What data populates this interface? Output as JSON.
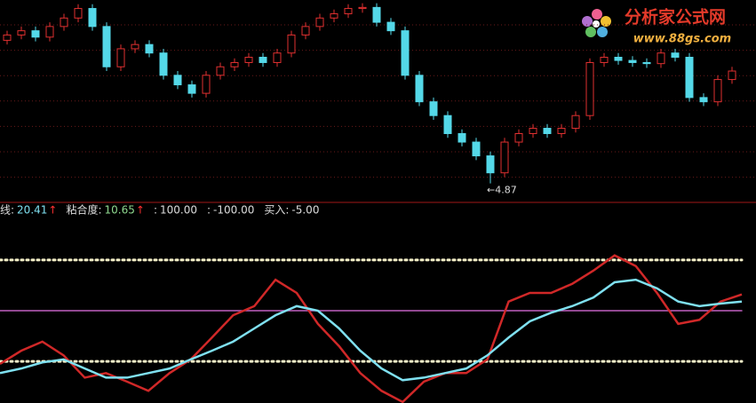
{
  "chart_data": [
    {
      "type": "candlestick",
      "annotation": "←4.87",
      "logo": {
        "title": "分析家公式网",
        "url": "www.88gs.com"
      },
      "up_color": "#e03030",
      "down_color": "#54d8e8",
      "ylim": [
        4.8,
        6.6
      ],
      "open": [
        6.22,
        6.27,
        6.31,
        6.25,
        6.35,
        6.43,
        6.52,
        6.35,
        5.97,
        6.14,
        6.18,
        6.1,
        5.89,
        5.8,
        5.72,
        5.89,
        5.97,
        6.01,
        6.06,
        6.01,
        6.1,
        6.27,
        6.35,
        6.43,
        6.47,
        6.52,
        6.53,
        6.39,
        6.31,
        5.89,
        5.64,
        5.51,
        5.34,
        5.26,
        5.13,
        4.97,
        5.26,
        5.34,
        5.39,
        5.34,
        5.39,
        5.51,
        6.01,
        6.06,
        6.03,
        6.01,
        6.0,
        6.1,
        6.06,
        5.68,
        5.64,
        5.85
      ],
      "high": [
        6.31,
        6.35,
        6.35,
        6.39,
        6.47,
        6.56,
        6.56,
        6.39,
        6.18,
        6.22,
        6.22,
        6.14,
        5.93,
        5.84,
        5.93,
        6.01,
        6.05,
        6.1,
        6.1,
        6.14,
        6.31,
        6.39,
        6.47,
        6.51,
        6.56,
        6.57,
        6.57,
        6.43,
        6.35,
        5.93,
        5.68,
        5.55,
        5.38,
        5.3,
        5.17,
        5.3,
        5.38,
        5.43,
        5.43,
        5.43,
        5.55,
        6.05,
        6.1,
        6.1,
        6.07,
        6.05,
        6.14,
        6.14,
        6.1,
        5.72,
        5.89,
        5.97
      ],
      "low": [
        6.18,
        6.23,
        6.21,
        6.21,
        6.31,
        6.39,
        6.31,
        5.93,
        5.93,
        6.1,
        6.06,
        5.85,
        5.76,
        5.68,
        5.68,
        5.85,
        5.93,
        5.97,
        5.97,
        5.97,
        6.06,
        6.23,
        6.31,
        6.39,
        6.43,
        6.48,
        6.35,
        6.27,
        5.85,
        5.6,
        5.47,
        5.3,
        5.22,
        5.09,
        4.87,
        4.93,
        5.22,
        5.3,
        5.3,
        5.3,
        5.35,
        5.47,
        5.97,
        5.99,
        5.97,
        5.96,
        5.96,
        6.02,
        5.64,
        5.6,
        5.6,
        5.81
      ],
      "close": [
        6.27,
        6.31,
        6.25,
        6.35,
        6.43,
        6.52,
        6.35,
        5.97,
        6.14,
        6.18,
        6.1,
        5.89,
        5.8,
        5.72,
        5.89,
        5.97,
        6.01,
        6.06,
        6.01,
        6.1,
        6.27,
        6.35,
        6.43,
        6.47,
        6.52,
        6.53,
        6.39,
        6.31,
        5.89,
        5.64,
        5.51,
        5.34,
        5.26,
        5.13,
        4.97,
        5.26,
        5.34,
        5.39,
        5.34,
        5.39,
        5.51,
        6.01,
        6.06,
        6.03,
        6.01,
        6.0,
        6.1,
        6.06,
        5.68,
        5.64,
        5.85,
        5.93
      ]
    },
    {
      "type": "line",
      "header": [
        {
          "label": "线:",
          "value": "20.41",
          "arrow": "↑"
        },
        {
          "label": "粘合度:",
          "value": "10.65",
          "arrow": "↑"
        },
        {
          "label": ":",
          "value": "100.00"
        },
        {
          "label": ":",
          "value": "-100.00"
        },
        {
          "label": "买入:",
          "value": "-5.00"
        }
      ],
      "ylim": [
        -182,
        210
      ],
      "reference_lines": [
        {
          "value": 100,
          "color": "#f4efc8"
        },
        {
          "value": 0,
          "color": "#c060c0"
        },
        {
          "value": -100,
          "color": "#f4efc8"
        }
      ],
      "categories": [
        null,
        null,
        null,
        null,
        null,
        null,
        null,
        null,
        null,
        null,
        null,
        null,
        null,
        null,
        null,
        null,
        null,
        null,
        null,
        null,
        null,
        null,
        null,
        null,
        null,
        null,
        null,
        null,
        null,
        null,
        null,
        null,
        null,
        null,
        null,
        null
      ],
      "series": [
        {
          "color": "#d02828",
          "values": [
            -105,
            -79,
            -61,
            -88,
            -132,
            -123,
            -140,
            -158,
            -123,
            -96,
            -53,
            -9,
            9,
            61,
            35,
            -26,
            -70,
            -123,
            -158,
            -180,
            -140,
            -123,
            -123,
            -96,
            18,
            35,
            35,
            53,
            79,
            109,
            88,
            35,
            -26,
            -18,
            18,
            32
          ]
        },
        {
          "color": "#7fe0f0",
          "values": [
            -123,
            -114,
            -102,
            -96,
            -114,
            -132,
            -132,
            -123,
            -114,
            -96,
            -79,
            -61,
            -35,
            -9,
            9,
            0,
            -35,
            -79,
            -114,
            -137,
            -132,
            -123,
            -114,
            -88,
            -53,
            -21,
            -4,
            9,
            26,
            56,
            61,
            44,
            18,
            9,
            14,
            18
          ]
        }
      ]
    }
  ]
}
